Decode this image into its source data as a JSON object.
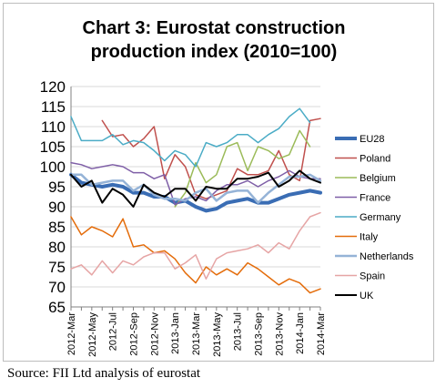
{
  "chart_data": {
    "type": "line",
    "title": "Chart 3: Eurostat construction production index (2010=100)",
    "ylim": [
      65,
      120
    ],
    "yticks": [
      65,
      70,
      75,
      80,
      85,
      90,
      95,
      100,
      105,
      110,
      115,
      120
    ],
    "x": [
      "2012-Mar",
      "2012-Apr",
      "2012-May",
      "2012-Jun",
      "2012-Jul",
      "2012-Aug",
      "2012-Sep",
      "2012-Oct",
      "2012-Nov",
      "2012-Dec",
      "2013-Jan",
      "2013-Feb",
      "2013-Mar",
      "2013-Apr",
      "2013-May",
      "2013-Jun",
      "2013-Jul",
      "2013-Aug",
      "2013-Sep",
      "2013-Oct",
      "2013-Nov",
      "2013-Dec",
      "2014-Jan",
      "2014-Feb",
      "2014-Mar"
    ],
    "xtick_labels": [
      "2012-Mar",
      "2012-May",
      "2012-Jul",
      "2012-Sep",
      "2012-Nov",
      "2013-Jan",
      "2013-Mar",
      "2013-May",
      "2013-Jul",
      "2013-Sep",
      "2013-Nov",
      "2014-Jan",
      "2014-Mar"
    ],
    "legend_position": "right",
    "grid": true,
    "series": [
      {
        "name": "EU28",
        "color": "#3a6db4",
        "width": 4,
        "values": [
          98.0,
          96.0,
          95.5,
          95.0,
          95.5,
          95.0,
          93.5,
          93.5,
          92.5,
          92.5,
          91.0,
          91.5,
          90.0,
          89.0,
          89.5,
          91.0,
          91.5,
          92.0,
          91.0,
          91.0,
          92.0,
          93.0,
          93.5,
          94.0,
          93.5
        ]
      },
      {
        "name": "Poland",
        "color": "#c0504d",
        "width": 1.5,
        "values": [
          null,
          null,
          null,
          111.5,
          107.5,
          108.0,
          105.0,
          107.0,
          110.0,
          97.0,
          103.0,
          100.0,
          93.0,
          92.0,
          93.0,
          94.0,
          99.5,
          98.0,
          98.0,
          99.0,
          104.0,
          98.0,
          96.5,
          111.5,
          112.0
        ]
      },
      {
        "name": "Belgium",
        "color": "#9bbb59",
        "width": 1.5,
        "values": [
          null,
          null,
          null,
          null,
          null,
          null,
          null,
          null,
          null,
          null,
          90.0,
          93.5,
          101.0,
          96.0,
          98.0,
          105.0,
          106.0,
          99.0,
          105.0,
          104.0,
          102.0,
          103.0,
          109.0,
          105.0,
          null
        ]
      },
      {
        "name": "France",
        "color": "#7f5fa7",
        "width": 1.5,
        "values": [
          101.0,
          100.5,
          99.5,
          100.0,
          100.5,
          100.0,
          98.5,
          98.5,
          97.0,
          98.0,
          90.5,
          92.0,
          92.5,
          91.5,
          94.0,
          95.5,
          95.5,
          96.5,
          95.0,
          96.5,
          97.5,
          99.0,
          97.5,
          97.0,
          97.0
        ]
      },
      {
        "name": "Germany",
        "color": "#4bacc6",
        "width": 1.5,
        "values": [
          112.5,
          106.5,
          106.5,
          106.5,
          108.0,
          105.5,
          106.5,
          106.0,
          104.0,
          101.5,
          104.0,
          103.0,
          100.0,
          106.0,
          105.0,
          106.0,
          108.0,
          108.0,
          106.0,
          108.0,
          109.5,
          112.5,
          114.5,
          111.0,
          null
        ]
      },
      {
        "name": "Italy",
        "color": "#e46c0a",
        "width": 1.5,
        "values": [
          87.5,
          83.0,
          85.0,
          84.0,
          82.5,
          87.0,
          80.0,
          80.5,
          78.5,
          79.0,
          77.0,
          73.5,
          71.0,
          75.0,
          73.0,
          74.5,
          73.0,
          76.0,
          74.5,
          72.5,
          70.5,
          72.0,
          71.0,
          68.5,
          69.5
        ]
      },
      {
        "name": "Netherlands",
        "color": "#95b3d7",
        "width": 2.5,
        "values": [
          98.0,
          98.0,
          95.5,
          96.0,
          96.5,
          96.5,
          94.0,
          95.5,
          93.0,
          92.0,
          92.0,
          91.5,
          93.5,
          94.5,
          91.5,
          93.5,
          94.0,
          94.0,
          91.0,
          93.5,
          95.5,
          97.5,
          97.5,
          98.0,
          96.5
        ]
      },
      {
        "name": "Spain",
        "color": "#e6a5a5",
        "width": 1.5,
        "values": [
          74.5,
          75.5,
          73.0,
          76.5,
          73.5,
          76.5,
          75.5,
          77.5,
          78.5,
          78.5,
          74.5,
          76.0,
          78.0,
          72.0,
          77.0,
          78.5,
          79.0,
          79.5,
          80.5,
          78.5,
          81.0,
          79.5,
          84.0,
          87.5,
          88.5
        ]
      },
      {
        "name": "UK",
        "color": "#000000",
        "width": 2,
        "values": [
          98.0,
          95.0,
          96.5,
          91.0,
          94.5,
          93.0,
          90.0,
          95.5,
          93.5,
          92.5,
          94.5,
          94.5,
          91.5,
          95.0,
          94.5,
          94.5,
          97.0,
          97.0,
          97.5,
          98.5,
          95.0,
          96.5,
          99.0,
          97.0,
          96.0
        ]
      }
    ]
  },
  "footer": {
    "source": "Source: FII Ltd analysis of eurostat"
  }
}
